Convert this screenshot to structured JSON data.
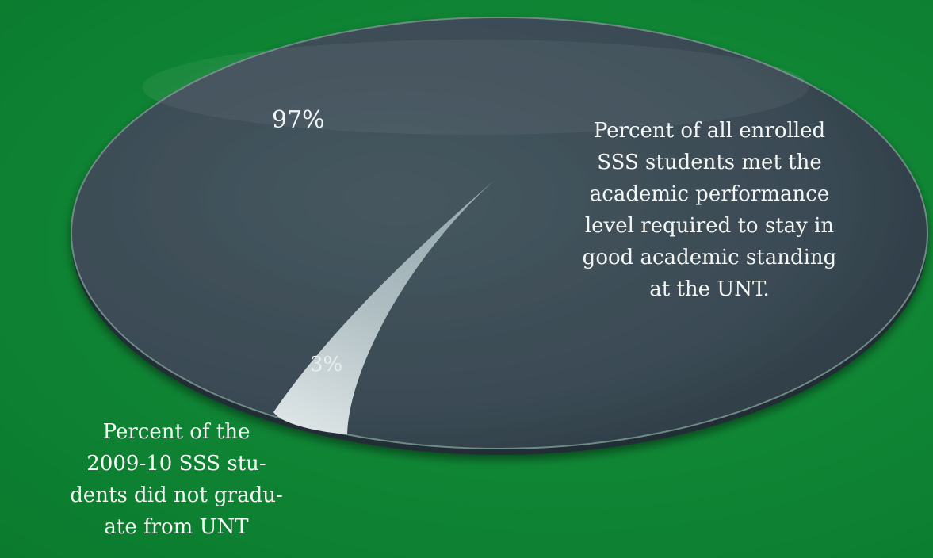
{
  "chart_data": {
    "type": "pie",
    "slices": [
      {
        "label": "97%",
        "value": 97,
        "color": "#3c4d58",
        "annotation": "Percent of all enrolled\nSSS students met the\nacademic performance\nlevel required to stay in\ngood academic standing\nat the UNT."
      },
      {
        "label": "3%",
        "value": 3,
        "color": "#b9c6c9",
        "annotation": "Percent of the\n2009-10 SSS stu-\ndents did not gradu-\nate from UNT"
      }
    ]
  },
  "colors": {
    "background": "#10893a",
    "pie_main": "#3c4d58",
    "pie_slice": "#b9c6c9"
  }
}
